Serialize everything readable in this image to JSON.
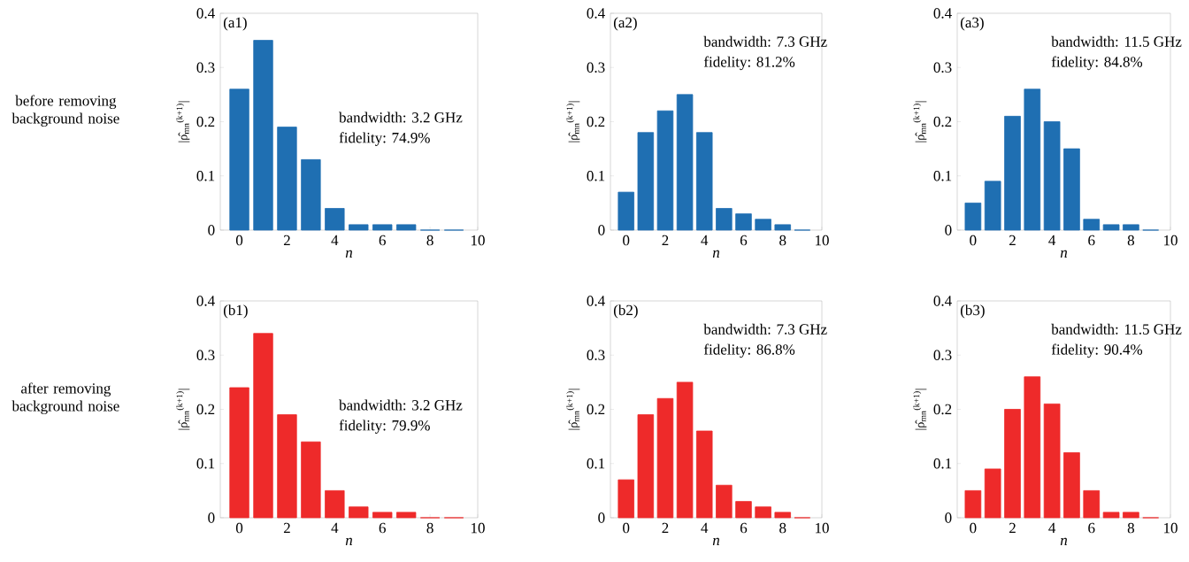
{
  "chart_data": [
    {
      "type": "bar",
      "x": [
        0,
        1,
        2,
        3,
        4,
        5,
        6,
        7,
        8,
        9
      ],
      "values": [
        0.26,
        0.35,
        0.19,
        0.13,
        0.04,
        0.01,
        0.01,
        0.01,
        0,
        0
      ],
      "color": "#1f6fb2",
      "xlim": [
        -0.8,
        10
      ],
      "ylim": [
        0,
        0.4
      ],
      "xticks": [
        0,
        2,
        4,
        6,
        8,
        10
      ],
      "yticks": [
        0,
        0.1,
        0.2,
        0.3,
        0.4
      ],
      "xlabel": "n",
      "ylabel": "|ρ̂$_{mn}$$^{(k+1)}$|",
      "annotations": [
        "(a1)",
        "bandwidth: 3.2 GHz",
        "fidelity: 74.9%",
        "before removing background noise"
      ]
    },
    {
      "type": "bar",
      "x": [
        0,
        1,
        2,
        3,
        4,
        5,
        6,
        7,
        8,
        9
      ],
      "values": [
        0.07,
        0.18,
        0.22,
        0.25,
        0.18,
        0.04,
        0.03,
        0.02,
        0.01,
        0
      ],
      "color": "#1f6fb2",
      "xlim": [
        -0.8,
        10
      ],
      "ylim": [
        0,
        0.4
      ],
      "xticks": [
        0,
        2,
        4,
        6,
        8,
        10
      ],
      "yticks": [
        0,
        0.1,
        0.2,
        0.3,
        0.4
      ],
      "xlabel": "n",
      "ylabel": "|ρ̂$_{mn}$$^{(k+1)}$|",
      "annotations": [
        "(a2)",
        "bandwidth: 7.3 GHz",
        "fidelity: 81.2%"
      ]
    },
    {
      "type": "bar",
      "x": [
        0,
        1,
        2,
        3,
        4,
        5,
        6,
        7,
        8,
        9
      ],
      "values": [
        0.05,
        0.09,
        0.21,
        0.26,
        0.2,
        0.15,
        0.02,
        0.01,
        0.01,
        0
      ],
      "color": "#1f6fb2",
      "xlim": [
        -0.8,
        10
      ],
      "ylim": [
        0,
        0.4
      ],
      "xticks": [
        0,
        2,
        4,
        6,
        8,
        10
      ],
      "yticks": [
        0,
        0.1,
        0.2,
        0.3,
        0.4
      ],
      "xlabel": "n",
      "ylabel": "|ρ̂$_{mn}$$^{(k+1)}$|",
      "annotations": [
        "(a3)",
        "bandwidth: 11.5 GHz",
        "fidelity: 84.8%"
      ]
    },
    {
      "type": "bar",
      "x": [
        0,
        1,
        2,
        3,
        4,
        5,
        6,
        7,
        8,
        9
      ],
      "values": [
        0.24,
        0.34,
        0.19,
        0.14,
        0.05,
        0.02,
        0.01,
        0.01,
        0,
        0
      ],
      "color": "#ee2a2a",
      "xlim": [
        -0.8,
        10
      ],
      "ylim": [
        0,
        0.4
      ],
      "xticks": [
        0,
        2,
        4,
        6,
        8,
        10
      ],
      "yticks": [
        0,
        0.1,
        0.2,
        0.3,
        0.4
      ],
      "xlabel": "n",
      "ylabel": "|ρ̂$_{mn}$$^{(k+1)}$|",
      "annotations": [
        "(b1)",
        "bandwidth: 3.2 GHz",
        "fidelity: 79.9%",
        "after removing background noise"
      ]
    },
    {
      "type": "bar",
      "x": [
        0,
        1,
        2,
        3,
        4,
        5,
        6,
        7,
        8,
        9
      ],
      "values": [
        0.07,
        0.19,
        0.22,
        0.25,
        0.16,
        0.06,
        0.03,
        0.02,
        0.01,
        0
      ],
      "color": "#ee2a2a",
      "xlim": [
        -0.8,
        10
      ],
      "ylim": [
        0,
        0.4
      ],
      "xticks": [
        0,
        2,
        4,
        6,
        8,
        10
      ],
      "yticks": [
        0,
        0.1,
        0.2,
        0.3,
        0.4
      ],
      "xlabel": "n",
      "ylabel": "|ρ̂$_{mn}$$^{(k+1)}$|",
      "annotations": [
        "(b2)",
        "bandwidth: 7.3 GHz",
        "fidelity: 86.8%"
      ]
    },
    {
      "type": "bar",
      "x": [
        0,
        1,
        2,
        3,
        4,
        5,
        6,
        7,
        8,
        9
      ],
      "values": [
        0.05,
        0.09,
        0.2,
        0.26,
        0.21,
        0.12,
        0.05,
        0.01,
        0.01,
        0
      ],
      "color": "#ee2a2a",
      "xlim": [
        -0.8,
        10
      ],
      "ylim": [
        0,
        0.4
      ],
      "xticks": [
        0,
        2,
        4,
        6,
        8,
        10
      ],
      "yticks": [
        0,
        0.1,
        0.2,
        0.3,
        0.4
      ],
      "xlabel": "n",
      "ylabel": "|ρ̂$_{mn}$$^{(k+1)}$|",
      "annotations": [
        "(b3)",
        "bandwidth: 11.5 GHz",
        "fidelity: 90.4%"
      ]
    }
  ]
}
